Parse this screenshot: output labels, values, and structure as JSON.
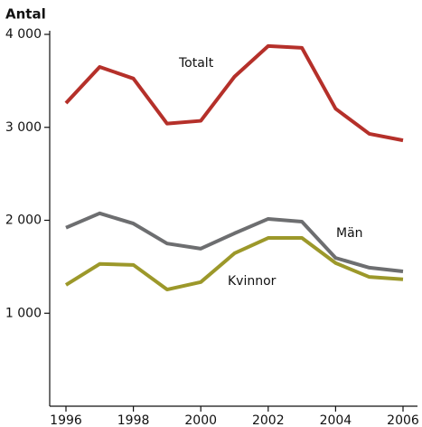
{
  "chart_data": {
    "type": "line",
    "y_label": "Antal",
    "x": [
      1996,
      1997,
      1998,
      1999,
      2000,
      2001,
      2002,
      2003,
      2004,
      2005,
      2006
    ],
    "xlim": [
      1996,
      2006
    ],
    "xticks": [
      1996,
      1998,
      2000,
      2002,
      2004,
      2006
    ],
    "ylim": [
      0,
      4000
    ],
    "yticks": [
      {
        "value": 1000,
        "label": "1 000"
      },
      {
        "value": 2000,
        "label": "2 000"
      },
      {
        "value": 3000,
        "label": "3 000"
      },
      {
        "value": 4000,
        "label": "4 000"
      }
    ],
    "grid": false,
    "series": [
      {
        "name": "Totalt",
        "color": "#b5302a",
        "values": [
          3260,
          3650,
          3525,
          3040,
          3070,
          3545,
          3875,
          3855,
          3200,
          2930,
          2860
        ]
      },
      {
        "name": "Män",
        "color": "#6d6e70",
        "values": [
          1920,
          2075,
          1965,
          1750,
          1695,
          1860,
          2015,
          1985,
          1595,
          1490,
          1450
        ]
      },
      {
        "name": "Kvinnor",
        "color": "#9c982a",
        "values": [
          1305,
          1530,
          1520,
          1255,
          1335,
          1645,
          1810,
          1810,
          1540,
          1390,
          1365
        ]
      }
    ]
  }
}
